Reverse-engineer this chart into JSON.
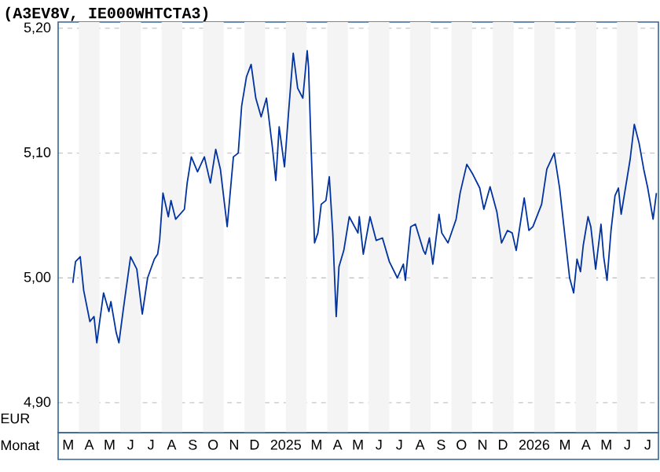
{
  "chart_data": {
    "type": "line",
    "title": "(A3EV8V, IE000WHTCTA3)",
    "xlabel": "Monat",
    "ylabel": "EUR",
    "xlim": [
      "2024-03-01",
      "2026-08-01"
    ],
    "xticks": [
      {
        "value": "2024-03-16",
        "label": "M"
      },
      {
        "value": "2024-04-16",
        "label": "A"
      },
      {
        "value": "2024-05-16",
        "label": "M"
      },
      {
        "value": "2024-06-16",
        "label": "J"
      },
      {
        "value": "2024-07-16",
        "label": "J"
      },
      {
        "value": "2024-08-16",
        "label": "A"
      },
      {
        "value": "2024-09-16",
        "label": "S"
      },
      {
        "value": "2024-10-16",
        "label": "O"
      },
      {
        "value": "2024-11-16",
        "label": "N"
      },
      {
        "value": "2024-12-16",
        "label": "D"
      },
      {
        "value": "2025-02-01",
        "label": "2025"
      },
      {
        "value": "2025-03-16",
        "label": "M"
      },
      {
        "value": "2025-04-16",
        "label": "A"
      },
      {
        "value": "2025-05-16",
        "label": "M"
      },
      {
        "value": "2025-06-16",
        "label": "J"
      },
      {
        "value": "2025-07-16",
        "label": "J"
      },
      {
        "value": "2025-08-16",
        "label": "A"
      },
      {
        "value": "2025-09-16",
        "label": "S"
      },
      {
        "value": "2025-10-16",
        "label": "O"
      },
      {
        "value": "2025-11-16",
        "label": "N"
      },
      {
        "value": "2025-12-16",
        "label": "D"
      },
      {
        "value": "2026-02-01",
        "label": "2026"
      },
      {
        "value": "2026-03-16",
        "label": "M"
      },
      {
        "value": "2026-04-16",
        "label": "A"
      },
      {
        "value": "2026-05-16",
        "label": "M"
      },
      {
        "value": "2026-06-16",
        "label": "J"
      },
      {
        "value": "2026-07-16",
        "label": "J"
      }
    ],
    "ylim": [
      4.876,
      5.205
    ],
    "yticks": [
      {
        "value": 4.9,
        "label": "4,90"
      },
      {
        "value": 5.0,
        "label": "5,00"
      },
      {
        "value": 5.1,
        "label": "5,10"
      },
      {
        "value": 5.2,
        "label": "5,20"
      }
    ],
    "grid": "y",
    "bands": [
      {
        "axis": "x",
        "from": "2024-04-01",
        "to": "2024-05-01",
        "color": "#f4f4f4"
      },
      {
        "axis": "x",
        "from": "2024-06-01",
        "to": "2024-07-01",
        "color": "#f4f4f4"
      },
      {
        "axis": "x",
        "from": "2024-08-01",
        "to": "2024-09-01",
        "color": "#f4f4f4"
      },
      {
        "axis": "x",
        "from": "2024-10-01",
        "to": "2024-11-01",
        "color": "#f4f4f4"
      },
      {
        "axis": "x",
        "from": "2024-12-01",
        "to": "2025-01-01",
        "color": "#f4f4f4"
      },
      {
        "axis": "x",
        "from": "2025-02-01",
        "to": "2025-03-01",
        "color": "#f4f4f4"
      },
      {
        "axis": "x",
        "from": "2025-04-01",
        "to": "2025-05-01",
        "color": "#f4f4f4"
      },
      {
        "axis": "x",
        "from": "2025-06-01",
        "to": "2025-07-01",
        "color": "#f4f4f4"
      },
      {
        "axis": "x",
        "from": "2025-08-01",
        "to": "2025-09-01",
        "color": "#f4f4f4"
      },
      {
        "axis": "x",
        "from": "2025-10-01",
        "to": "2025-11-01",
        "color": "#f4f4f4"
      },
      {
        "axis": "x",
        "from": "2025-12-01",
        "to": "2026-01-01",
        "color": "#f4f4f4"
      },
      {
        "axis": "x",
        "from": "2026-02-01",
        "to": "2026-03-01",
        "color": "#f4f4f4"
      },
      {
        "axis": "x",
        "from": "2026-04-01",
        "to": "2026-05-01",
        "color": "#f4f4f4"
      },
      {
        "axis": "x",
        "from": "2026-06-01",
        "to": "2026-07-01",
        "color": "#f4f4f4"
      }
    ],
    "series": [
      {
        "color": "#0033a0",
        "x": [
          "2024-03-23",
          "2024-03-27",
          "2024-04-03",
          "2024-04-08",
          "2024-04-17",
          "2024-04-23",
          "2024-04-27",
          "2024-05-07",
          "2024-05-15",
          "2024-05-18",
          "2024-05-26",
          "2024-05-30",
          "2024-06-06",
          "2024-06-16",
          "2024-06-25",
          "2024-07-03",
          "2024-07-11",
          "2024-07-21",
          "2024-07-26",
          "2024-07-29",
          "2024-08-03",
          "2024-08-11",
          "2024-08-15",
          "2024-08-22",
          "2024-09-04",
          "2024-09-08",
          "2024-09-14",
          "2024-09-23",
          "2024-10-03",
          "2024-10-12",
          "2024-10-20",
          "2024-10-27",
          "2024-11-06",
          "2024-11-15",
          "2024-11-22",
          "2024-11-27",
          "2024-12-04",
          "2024-12-11",
          "2024-12-18",
          "2024-12-26",
          "2025-01-03",
          "2025-01-12",
          "2025-01-17",
          "2025-01-22",
          "2025-01-30",
          "2025-02-05",
          "2025-02-11",
          "2025-02-17",
          "2025-02-24",
          "2025-03-02",
          "2025-03-04",
          "2025-03-08",
          "2025-03-13",
          "2025-03-18",
          "2025-03-23",
          "2025-03-30",
          "2025-04-04",
          "2025-04-09",
          "2025-04-14",
          "2025-04-18",
          "2025-04-25",
          "2025-05-03",
          "2025-05-16",
          "2025-05-18",
          "2025-05-24",
          "2025-06-03",
          "2025-06-12",
          "2025-06-21",
          "2025-07-01",
          "2025-07-13",
          "2025-07-22",
          "2025-07-25",
          "2025-08-02",
          "2025-08-09",
          "2025-08-21",
          "2025-08-24",
          "2025-08-30",
          "2025-09-04",
          "2025-09-13",
          "2025-09-17",
          "2025-09-26",
          "2025-10-08",
          "2025-10-14",
          "2025-10-24",
          "2025-11-02",
          "2025-11-12",
          "2025-11-18",
          "2025-11-27",
          "2025-12-07",
          "2025-12-14",
          "2025-12-23",
          "2025-12-30",
          "2026-01-05",
          "2026-01-17",
          "2026-01-24",
          "2026-01-30",
          "2026-02-11",
          "2026-02-18",
          "2026-02-28",
          "2026-03-08",
          "2026-03-14",
          "2026-03-23",
          "2026-03-29",
          "2026-04-03",
          "2026-04-08",
          "2026-04-12",
          "2026-04-19",
          "2026-04-23",
          "2026-04-30",
          "2026-05-08",
          "2026-05-12",
          "2026-05-17",
          "2026-05-23",
          "2026-05-29",
          "2026-06-03",
          "2026-06-07",
          "2026-06-15",
          "2026-06-20",
          "2026-06-26",
          "2026-07-03",
          "2026-07-10",
          "2026-07-16",
          "2026-07-24",
          "2026-07-29"
        ],
        "values": [
          4.996,
          5.013,
          5.017,
          4.99,
          4.965,
          4.969,
          4.948,
          4.988,
          4.973,
          4.981,
          4.956,
          4.948,
          4.977,
          5.017,
          5.007,
          4.971,
          5.0,
          5.015,
          5.019,
          5.03,
          5.068,
          5.049,
          5.062,
          5.047,
          5.055,
          5.076,
          5.097,
          5.085,
          5.097,
          5.076,
          5.103,
          5.087,
          5.041,
          5.097,
          5.1,
          5.138,
          5.161,
          5.171,
          5.144,
          5.129,
          5.144,
          5.104,
          5.078,
          5.121,
          5.089,
          5.135,
          5.18,
          5.152,
          5.144,
          5.182,
          5.169,
          5.102,
          5.028,
          5.036,
          5.059,
          5.062,
          5.081,
          5.036,
          4.969,
          5.009,
          5.022,
          5.049,
          5.036,
          5.049,
          5.019,
          5.049,
          5.03,
          5.032,
          5.013,
          5.0,
          5.011,
          4.998,
          5.041,
          5.043,
          5.022,
          5.019,
          5.032,
          5.011,
          5.051,
          5.036,
          5.028,
          5.047,
          5.068,
          5.091,
          5.083,
          5.072,
          5.055,
          5.073,
          5.053,
          5.028,
          5.038,
          5.036,
          5.022,
          5.064,
          5.038,
          5.041,
          5.059,
          5.087,
          5.1,
          5.072,
          5.043,
          5.0,
          4.988,
          5.015,
          5.005,
          5.026,
          5.049,
          5.041,
          5.007,
          5.043,
          5.017,
          4.998,
          5.038,
          5.066,
          5.072,
          5.051,
          5.078,
          5.095,
          5.123,
          5.108,
          5.087,
          5.072,
          5.047,
          5.068
        ]
      }
    ]
  }
}
